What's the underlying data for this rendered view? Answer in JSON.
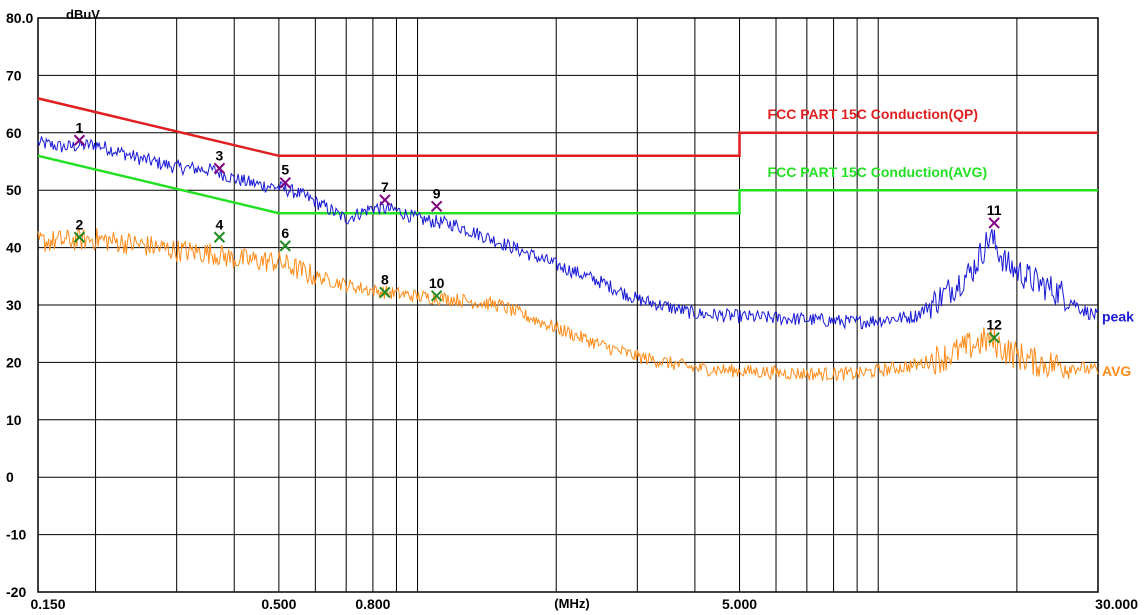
{
  "chart_data": {
    "type": "line",
    "y_unit": "dBuV",
    "x_unit": "(MHz)",
    "x_scale": "log",
    "xlim": [
      0.15,
      30
    ],
    "ylim": [
      -20,
      80
    ],
    "grid": true,
    "y_ticks": [
      "80.0",
      "70",
      "60",
      "50",
      "40",
      "30",
      "20",
      "10",
      "0",
      "-10",
      "-20"
    ],
    "x_tick_labels": [
      {
        "x": 0.15,
        "label": "0.150"
      },
      {
        "x": 0.5,
        "label": "0.500"
      },
      {
        "x": 0.8,
        "label": "0.800"
      },
      {
        "x": 5,
        "label": "5.000"
      },
      {
        "x": 30,
        "label": "30.000"
      }
    ],
    "x_grid": [
      0.2,
      0.3,
      0.4,
      0.5,
      0.6,
      0.7,
      0.8,
      0.9,
      1,
      2,
      3,
      4,
      5,
      6,
      7,
      8,
      9,
      10,
      20
    ],
    "limits": [
      {
        "name": "FCC PART 15C  Conduction(QP)",
        "color": "#e02020",
        "points": [
          [
            0.15,
            66
          ],
          [
            0.5,
            56
          ],
          [
            5,
            56
          ],
          [
            5,
            60
          ],
          [
            30,
            60
          ]
        ]
      },
      {
        "name": "FCC PART 15C  Conduction(AVG)",
        "color": "#22e022",
        "points": [
          [
            0.15,
            56
          ],
          [
            0.5,
            46
          ],
          [
            5,
            46
          ],
          [
            5,
            50
          ],
          [
            30,
            50
          ]
        ]
      }
    ],
    "series": [
      {
        "name": "peak",
        "color": "#1a1ad6",
        "points": [
          [
            0.15,
            58.3
          ],
          [
            0.17,
            57.5
          ],
          [
            0.2,
            58
          ],
          [
            0.25,
            55.5
          ],
          [
            0.3,
            54
          ],
          [
            0.36,
            53.5
          ],
          [
            0.4,
            52
          ],
          [
            0.45,
            51
          ],
          [
            0.5,
            50.5
          ],
          [
            0.55,
            49.5
          ],
          [
            0.6,
            48
          ],
          [
            0.7,
            45
          ],
          [
            0.8,
            47
          ],
          [
            0.9,
            46.5
          ],
          [
            1,
            45
          ],
          [
            1.2,
            44
          ],
          [
            1.5,
            41
          ],
          [
            2,
            37
          ],
          [
            2.5,
            34
          ],
          [
            3,
            31
          ],
          [
            4,
            28.5
          ],
          [
            5,
            28
          ],
          [
            7,
            27.5
          ],
          [
            9,
            27
          ],
          [
            12,
            28
          ],
          [
            14,
            32
          ],
          [
            16,
            36
          ],
          [
            17.5,
            42
          ],
          [
            19,
            37
          ],
          [
            22,
            34
          ],
          [
            25,
            32
          ],
          [
            28,
            29
          ],
          [
            30,
            28
          ]
        ]
      },
      {
        "name": "AVG",
        "color": "#ff8c1a",
        "points": [
          [
            0.15,
            41
          ],
          [
            0.2,
            41.5
          ],
          [
            0.25,
            40.5
          ],
          [
            0.3,
            39.5
          ],
          [
            0.36,
            39
          ],
          [
            0.4,
            38
          ],
          [
            0.5,
            37.5
          ],
          [
            0.6,
            35
          ],
          [
            0.7,
            33.5
          ],
          [
            0.8,
            32.5
          ],
          [
            1,
            31.5
          ],
          [
            1.2,
            31
          ],
          [
            1.5,
            30
          ],
          [
            2,
            26
          ],
          [
            2.5,
            23
          ],
          [
            3,
            21
          ],
          [
            4,
            19
          ],
          [
            5,
            18.5
          ],
          [
            7,
            18
          ],
          [
            9,
            18
          ],
          [
            12,
            19.5
          ],
          [
            14,
            21
          ],
          [
            16,
            23
          ],
          [
            17.5,
            24
          ],
          [
            19,
            22
          ],
          [
            22,
            20
          ],
          [
            25,
            19.5
          ],
          [
            28,
            19
          ],
          [
            30,
            18.5
          ]
        ]
      }
    ],
    "markers": [
      {
        "id": "1",
        "x": 0.1845,
        "y": 58.7,
        "type": "peak"
      },
      {
        "id": "2",
        "x": 0.1845,
        "y": 41.8,
        "type": "avg"
      },
      {
        "id": "3",
        "x": 0.3715,
        "y": 53.8,
        "type": "peak"
      },
      {
        "id": "4",
        "x": 0.3715,
        "y": 41.8,
        "type": "avg"
      },
      {
        "id": "5",
        "x": 0.5162,
        "y": 51.3,
        "type": "peak"
      },
      {
        "id": "6",
        "x": 0.5162,
        "y": 40.3,
        "type": "avg"
      },
      {
        "id": "7",
        "x": 0.8495,
        "y": 48.3,
        "type": "peak"
      },
      {
        "id": "8",
        "x": 0.8495,
        "y": 32.2,
        "type": "avg"
      },
      {
        "id": "9",
        "x": 1.1001,
        "y": 47.2,
        "type": "peak"
      },
      {
        "id": "10",
        "x": 1.1001,
        "y": 31.6,
        "type": "avg"
      },
      {
        "id": "11",
        "x": 17.8545,
        "y": 44.3,
        "type": "peak"
      },
      {
        "id": "12",
        "x": 17.8545,
        "y": 24.3,
        "type": "avg"
      }
    ]
  }
}
